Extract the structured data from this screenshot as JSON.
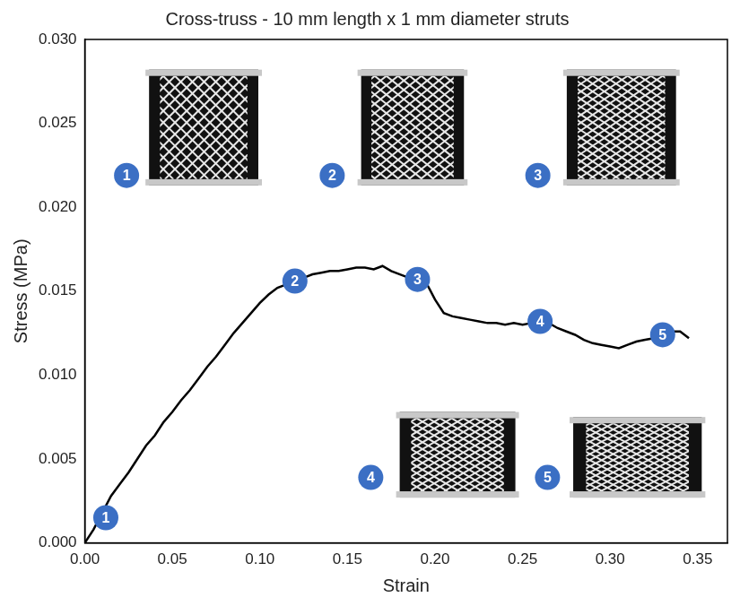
{
  "chart_data": {
    "type": "line",
    "title": "Cross-truss - 10 mm length x 1 mm diameter struts",
    "x_label": "Strain",
    "y_label": "Stress (MPa)",
    "x": [
      0,
      0.005,
      0.01,
      0.015,
      0.02,
      0.025,
      0.03,
      0.035,
      0.04,
      0.045,
      0.05,
      0.055,
      0.06,
      0.065,
      0.07,
      0.075,
      0.08,
      0.085,
      0.09,
      0.095,
      0.1,
      0.105,
      0.11,
      0.115,
      0.12,
      0.125,
      0.13,
      0.135,
      0.14,
      0.145,
      0.15,
      0.155,
      0.16,
      0.165,
      0.17,
      0.175,
      0.18,
      0.185,
      0.19,
      0.195,
      0.2,
      0.205,
      0.21,
      0.215,
      0.22,
      0.225,
      0.23,
      0.235,
      0.24,
      0.245,
      0.25,
      0.255,
      0.26,
      0.265,
      0.27,
      0.275,
      0.28,
      0.285,
      0.29,
      0.295,
      0.3,
      0.305,
      0.31,
      0.315,
      0.32,
      0.325,
      0.33,
      0.335,
      0.34,
      0.345
    ],
    "series": [
      {
        "name": "Cross-truss",
        "color": "#000000",
        "values": [
          0,
          0.0008,
          0.0018,
          0.0028,
          0.0035,
          0.0042,
          0.005,
          0.0058,
          0.0064,
          0.0072,
          0.0078,
          0.0085,
          0.0091,
          0.0098,
          0.0105,
          0.0111,
          0.0118,
          0.0125,
          0.0131,
          0.0137,
          0.0143,
          0.0148,
          0.0152,
          0.0154,
          0.0156,
          0.0158,
          0.016,
          0.0161,
          0.0162,
          0.0162,
          0.0163,
          0.0164,
          0.0164,
          0.0163,
          0.0165,
          0.0162,
          0.016,
          0.0158,
          0.0157,
          0.0155,
          0.0145,
          0.0137,
          0.0135,
          0.0134,
          0.0133,
          0.0132,
          0.0131,
          0.0131,
          0.013,
          0.0131,
          0.013,
          0.0131,
          0.0132,
          0.0131,
          0.0128,
          0.0126,
          0.0124,
          0.0121,
          0.0119,
          0.0118,
          0.0117,
          0.0116,
          0.0118,
          0.012,
          0.0121,
          0.0122,
          0.0124,
          0.0126,
          0.0126,
          0.0122
        ]
      }
    ],
    "xlim": [
      0,
      0.367
    ],
    "xticks": [
      {
        "value": 0,
        "label": "0.00"
      },
      {
        "value": 0.05,
        "label": "0.05"
      },
      {
        "value": 0.1,
        "label": "0.10"
      },
      {
        "value": 0.15,
        "label": "0.15"
      },
      {
        "value": 0.2,
        "label": "0.20"
      },
      {
        "value": 0.25,
        "label": "0.25"
      },
      {
        "value": 0.3,
        "label": "0.30"
      },
      {
        "value": 0.35,
        "label": "0.35"
      }
    ],
    "ylim": [
      0,
      0.03
    ],
    "yticks": [
      {
        "value": 0,
        "label": "0.000"
      },
      {
        "value": 0.005,
        "label": "0.005"
      },
      {
        "value": 0.01,
        "label": "0.010"
      },
      {
        "value": 0.015,
        "label": "0.015"
      },
      {
        "value": 0.02,
        "label": "0.020"
      },
      {
        "value": 0.025,
        "label": "0.025"
      },
      {
        "value": 0.03,
        "label": "0.030"
      }
    ],
    "grid": false,
    "annotations": [
      {
        "label": "1",
        "x": 0.012,
        "y": 0.0015,
        "color": "#3b6fc4"
      },
      {
        "label": "2",
        "x": 0.12,
        "y": 0.0156,
        "color": "#3b6fc4"
      },
      {
        "label": "3",
        "x": 0.19,
        "y": 0.0157,
        "color": "#3b6fc4"
      },
      {
        "label": "4",
        "x": 0.26,
        "y": 0.0132,
        "color": "#3b6fc4"
      },
      {
        "label": "5",
        "x": 0.33,
        "y": 0.0124,
        "color": "#3b6fc4"
      }
    ],
    "insets": [
      "1",
      "2",
      "3",
      "4",
      "5"
    ]
  }
}
